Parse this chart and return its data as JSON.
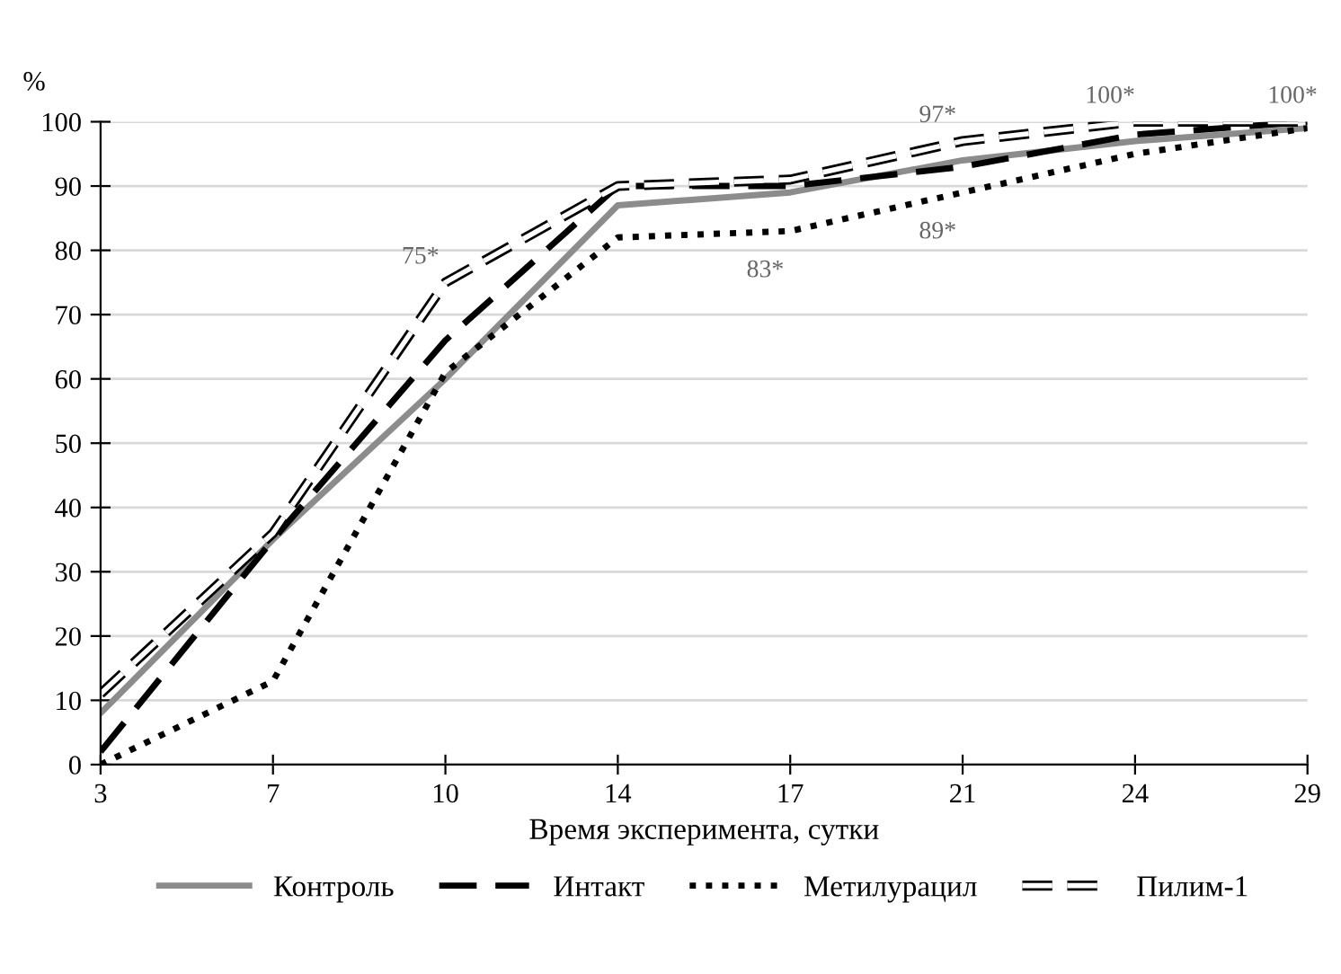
{
  "chart_data": {
    "type": "line",
    "xlabel": "Время эксперимента, сутки",
    "ylabel": "%",
    "categories": [
      "3",
      "7",
      "10",
      "14",
      "17",
      "21",
      "24",
      "29"
    ],
    "ylim": [
      0,
      100
    ],
    "yticks": [
      0,
      10,
      20,
      30,
      40,
      50,
      60,
      70,
      80,
      90,
      100
    ],
    "grid": "y",
    "legend": "bottom",
    "marker": "none",
    "series": [
      {
        "name": "Контроль",
        "color": "#8c8c8c",
        "line_style": "solid",
        "values": [
          8,
          35,
          60,
          87,
          89,
          94,
          97,
          99
        ]
      },
      {
        "name": "Интакт",
        "color": "#000000",
        "line_style": "dashed",
        "values": [
          2,
          35,
          66,
          90,
          90,
          93,
          98,
          100
        ]
      },
      {
        "name": "Метилурацил",
        "color": "#000000",
        "line_style": "dotted",
        "values": [
          0,
          13,
          61,
          82,
          83,
          89,
          95,
          99
        ]
      },
      {
        "name": "Пилим-1",
        "color": "#ffffff",
        "line_style": "dashed",
        "values": [
          11,
          36,
          75,
          90,
          91,
          97,
          100,
          100
        ]
      }
    ],
    "annotations": [
      {
        "text": "75*",
        "x": "10",
        "y": 75
      },
      {
        "text": "83*",
        "x": "17",
        "y": 83
      },
      {
        "text": "89*",
        "x": "21",
        "y": 89
      },
      {
        "text": "97*",
        "x": "21",
        "y": 97
      },
      {
        "text": "100*",
        "x": "24",
        "y": 100
      },
      {
        "text": "100*",
        "x": "29",
        "y": 100
      }
    ]
  }
}
